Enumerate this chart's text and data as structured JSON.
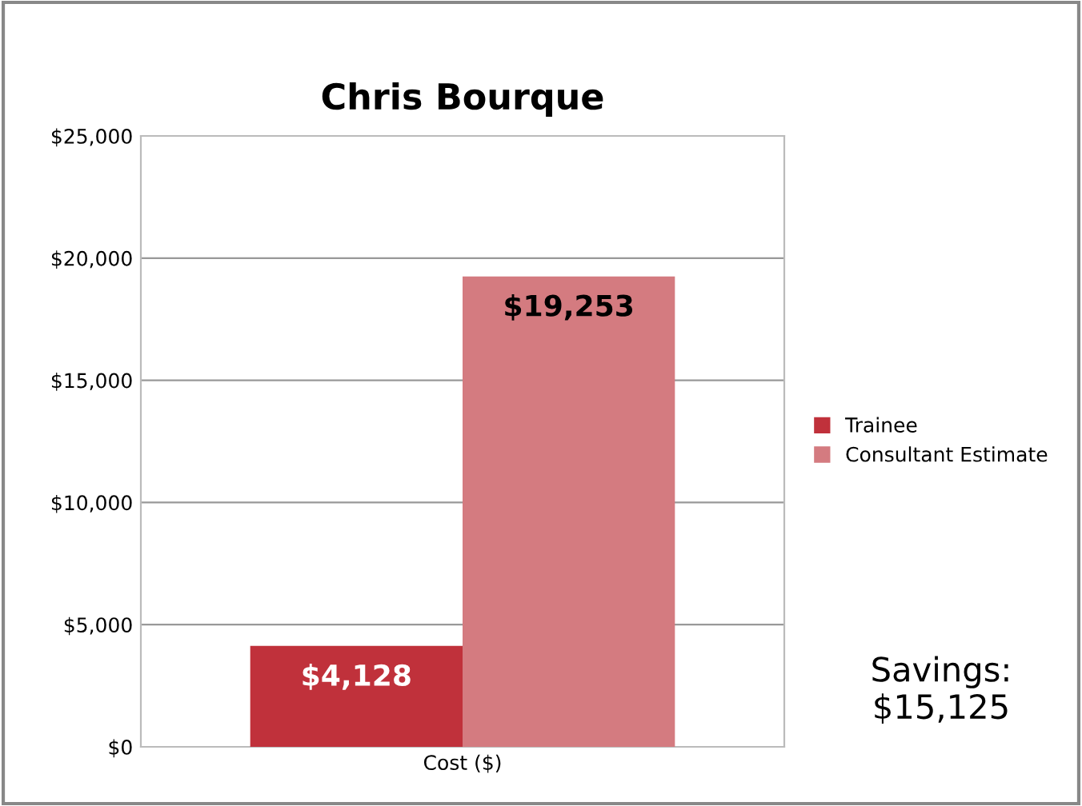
{
  "chart_data": {
    "type": "bar",
    "title": "Chris Bourque",
    "categories": [
      "Cost ($)"
    ],
    "series": [
      {
        "name": "Trainee",
        "color": "#c0313b",
        "values": [
          4128
        ],
        "value_labels": [
          "$4,128"
        ]
      },
      {
        "name": "Consultant Estimate",
        "color": "#d47b80",
        "values": [
          19253
        ],
        "value_labels": [
          "$19,253"
        ]
      }
    ],
    "ylim": [
      0,
      25000
    ],
    "yticks": [
      {
        "value": 0,
        "label": "$0"
      },
      {
        "value": 5000,
        "label": "$5,000"
      },
      {
        "value": 10000,
        "label": "$10,000"
      },
      {
        "value": 15000,
        "label": "$15,000"
      },
      {
        "value": 20000,
        "label": "$20,000"
      },
      {
        "value": 25000,
        "label": "$25,000"
      }
    ],
    "grid": "y",
    "legend": "right",
    "annotations": [
      "Savings:\n$15,125"
    ]
  }
}
